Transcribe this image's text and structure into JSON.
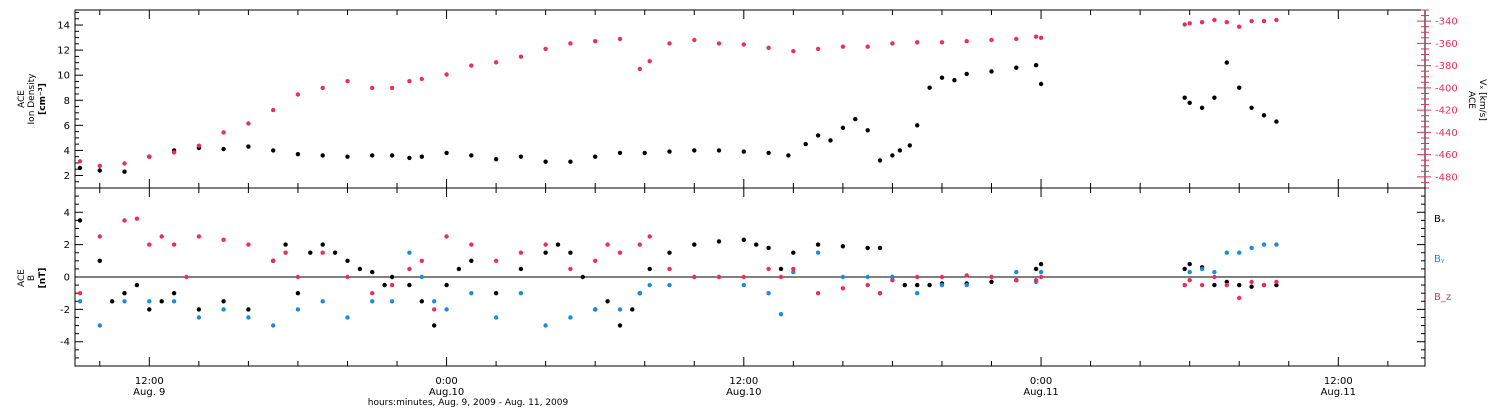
{
  "colors": {
    "black": "#000000",
    "red": "#e8305a",
    "blue": "#1a8be0",
    "frame": "#000000"
  },
  "xaxis": {
    "ticks": [
      {
        "time": "12:00",
        "date": "Aug. 9"
      },
      {
        "time": "0:00",
        "date": "Aug.10"
      },
      {
        "time": "12:00",
        "date": "Aug.10"
      },
      {
        "time": "0:00",
        "date": "Aug.11"
      },
      {
        "time": "12:00",
        "date": "Aug.11"
      }
    ],
    "label": "hours:minutes, Aug.  9, 2009 - Aug. 11, 2009"
  },
  "top_panel": {
    "left_label": {
      "line1": "ACE",
      "line2": "Ion Density",
      "units": "[cm⁻³]"
    },
    "right_label": {
      "line1": "ACE",
      "line2": "Vₓ [km/s]"
    },
    "left_ticks": [
      "2",
      "4",
      "6",
      "8",
      "10",
      "12",
      "14"
    ],
    "right_ticks": [
      "-480",
      "-460",
      "-440",
      "-420",
      "-400",
      "-380",
      "-360",
      "-340"
    ]
  },
  "bottom_panel": {
    "left_label": {
      "line1": "ACE",
      "line2": "B",
      "units": "[nT]"
    },
    "left_ticks": [
      "-4",
      "-2",
      "0",
      "2",
      "4"
    ],
    "legend": [
      {
        "name": "Bₓ",
        "color": "#000000"
      },
      {
        "name": "Bᵧ",
        "color": "#1a8be0"
      },
      {
        "name": "B_z",
        "color": "#e8305a"
      }
    ]
  },
  "chart_data": [
    {
      "type": "scatter",
      "panel": "top",
      "x_unit": "hours since Aug. 9, 2009 00:00 UT",
      "xlim": [
        9.0,
        63.5
      ],
      "ylim": [
        1.0,
        15.2
      ],
      "y2lim": [
        -490,
        -330
      ],
      "series": [
        {
          "name": "Ion Density",
          "axis": "left",
          "color": "#000000",
          "x": [
            9.2,
            10.0,
            11.0,
            12.0,
            13.0,
            14.0,
            15.0,
            16.0,
            17.0,
            18.0,
            19.0,
            20.0,
            21.0,
            21.8,
            22.5,
            23.0,
            24.0,
            25.0,
            26.0,
            27.0,
            28.0,
            29.0,
            30.0,
            31.0,
            32.0,
            33.0,
            34.0,
            35.0,
            36.0,
            37.0,
            37.8,
            38.5,
            39.0,
            39.5,
            40.0,
            40.5,
            41.0,
            41.5,
            42.0,
            42.3,
            42.7,
            43.0,
            43.5,
            44.0,
            44.5,
            45.0,
            46.0,
            47.0,
            47.8,
            48.0,
            53.8,
            54.0,
            54.5,
            55.0,
            55.5,
            56.0,
            56.5,
            57.0,
            57.5
          ],
          "y": [
            2.6,
            2.4,
            2.3,
            3.5,
            4.0,
            4.2,
            4.1,
            4.3,
            4.0,
            3.7,
            3.6,
            3.5,
            3.6,
            3.6,
            3.4,
            3.5,
            3.8,
            3.6,
            3.3,
            3.5,
            3.1,
            3.1,
            3.5,
            3.8,
            3.8,
            3.9,
            4.0,
            4.0,
            3.9,
            3.8,
            3.6,
            4.5,
            5.2,
            4.8,
            5.8,
            6.5,
            5.6,
            3.2,
            3.6,
            4.0,
            4.4,
            6.0,
            9.0,
            9.8,
            9.6,
            10.1,
            10.3,
            10.6,
            10.8,
            9.3,
            8.2,
            7.8,
            7.4,
            8.2,
            11.0,
            9.0,
            7.4,
            6.8,
            6.3
          ]
        },
        {
          "name": "Vx",
          "axis": "right",
          "color": "#e8305a",
          "x": [
            9.2,
            10.0,
            11.0,
            12.0,
            13.0,
            14.0,
            15.0,
            16.0,
            17.0,
            18.0,
            19.0,
            20.0,
            21.0,
            21.8,
            22.5,
            23.0,
            24.0,
            25.0,
            26.0,
            27.0,
            28.0,
            29.0,
            30.0,
            31.0,
            31.8,
            32.2,
            33.0,
            34.0,
            35.0,
            36.0,
            37.0,
            38.0,
            39.0,
            40.0,
            41.0,
            42.0,
            43.0,
            44.0,
            45.0,
            46.0,
            47.0,
            47.8,
            48.0,
            53.8,
            54.0,
            54.5,
            55.0,
            55.5,
            56.0,
            56.5,
            57.0,
            57.5
          ],
          "y": [
            -466,
            -470,
            -468,
            -462,
            -458,
            -452,
            -440,
            -432,
            -420,
            -406,
            -400,
            -394,
            -400,
            -400,
            -394,
            -392,
            -388,
            -380,
            -377,
            -372,
            -365,
            -360,
            -358,
            -356,
            -383,
            -376,
            -360,
            -357,
            -360,
            -361,
            -364,
            -367,
            -365,
            -363,
            -363,
            -360,
            -359,
            -359,
            -358,
            -357,
            -356,
            -354,
            -355,
            -343,
            -342,
            -341,
            -339,
            -341,
            -345,
            -340,
            -340,
            -339
          ]
        }
      ]
    },
    {
      "type": "scatter",
      "panel": "bottom",
      "x_unit": "hours since Aug. 9, 2009 00:00 UT",
      "xlim": [
        9.0,
        63.5
      ],
      "ylim": [
        -5.5,
        5.5
      ],
      "zero_line": true,
      "series": [
        {
          "name": "Bx",
          "color": "#000000",
          "x": [
            9.2,
            10.0,
            10.5,
            11.0,
            11.5,
            12.0,
            12.5,
            13.0,
            14.0,
            15.0,
            16.0,
            17.0,
            17.5,
            18.0,
            18.5,
            19.0,
            19.5,
            20.0,
            20.5,
            21.0,
            21.5,
            21.8,
            22.5,
            23.0,
            23.5,
            24.0,
            24.5,
            25.0,
            26.0,
            27.0,
            28.0,
            28.5,
            29.0,
            29.5,
            30.0,
            30.5,
            31.0,
            31.5,
            31.8,
            32.2,
            33.0,
            34.0,
            35.0,
            36.0,
            36.5,
            37.0,
            37.5,
            38.0,
            39.0,
            40.0,
            41.0,
            41.5,
            42.0,
            42.5,
            43.0,
            43.5,
            44.0,
            45.0,
            46.0,
            47.0,
            47.8,
            48.0,
            53.8,
            54.0,
            54.5,
            55.0,
            55.5,
            56.0,
            56.5,
            57.0,
            57.5
          ],
          "y": [
            3.5,
            1.0,
            -1.5,
            -1.0,
            -0.5,
            -2.0,
            -1.5,
            -1.0,
            -2.0,
            -1.5,
            -2.0,
            1.0,
            2.0,
            -1.0,
            1.5,
            2.0,
            1.5,
            1.0,
            0.5,
            0.3,
            -0.5,
            0.0,
            -0.5,
            -1.5,
            -3.0,
            -0.5,
            0.5,
            1.0,
            -1.0,
            0.5,
            1.5,
            2.0,
            1.5,
            0.0,
            -2.0,
            -1.5,
            -3.0,
            -2.0,
            -1.0,
            0.5,
            1.5,
            2.0,
            2.2,
            2.3,
            2.0,
            1.8,
            0.5,
            1.5,
            2.0,
            1.9,
            1.8,
            1.8,
            0.0,
            -0.5,
            -0.5,
            -0.5,
            -0.4,
            -0.4,
            -0.3,
            -0.2,
            0.5,
            0.8,
            0.5,
            0.8,
            0.6,
            -0.5,
            -0.3,
            -0.5,
            -0.6,
            -0.5,
            -0.5
          ]
        },
        {
          "name": "By",
          "color": "#1a8be0",
          "x": [
            9.2,
            10.0,
            11.0,
            12.0,
            13.0,
            14.0,
            15.0,
            16.0,
            17.0,
            18.0,
            19.0,
            20.0,
            21.0,
            21.8,
            22.5,
            23.0,
            23.5,
            24.0,
            25.0,
            26.0,
            27.0,
            28.0,
            29.0,
            30.0,
            31.0,
            31.8,
            32.2,
            33.0,
            34.0,
            35.0,
            36.0,
            37.0,
            37.5,
            38.0,
            39.0,
            40.0,
            41.0,
            41.5,
            42.0,
            43.0,
            44.0,
            45.0,
            46.0,
            47.0,
            47.8,
            48.0,
            53.8,
            54.0,
            54.5,
            55.0,
            55.5,
            56.0,
            56.5,
            57.0,
            57.5
          ],
          "y": [
            -1.5,
            -3.0,
            -1.5,
            -1.5,
            -1.5,
            -2.5,
            -2.0,
            -2.5,
            -3.0,
            -2.0,
            -1.5,
            -2.5,
            -1.5,
            -1.5,
            1.5,
            0.0,
            -1.5,
            -2.0,
            -1.0,
            -2.5,
            -1.0,
            -3.0,
            -2.5,
            -2.0,
            -2.0,
            -1.0,
            -0.5,
            -0.5,
            0.0,
            0.0,
            -0.5,
            -1.0,
            -2.3,
            0.3,
            1.5,
            0.0,
            0.0,
            -1.0,
            0.0,
            -1.0,
            -0.5,
            -0.5,
            0.0,
            0.3,
            -0.3,
            0.3,
            -0.5,
            0.3,
            0.5,
            0.3,
            1.5,
            1.5,
            1.8,
            2.0,
            2.0
          ]
        },
        {
          "name": "Bz",
          "color": "#e8305a",
          "x": [
            9.2,
            10.0,
            11.0,
            11.5,
            12.0,
            12.5,
            13.0,
            13.5,
            14.0,
            15.0,
            16.0,
            17.0,
            17.5,
            18.0,
            19.0,
            20.0,
            21.0,
            21.8,
            22.5,
            23.0,
            23.5,
            24.0,
            25.0,
            26.0,
            27.0,
            28.0,
            29.0,
            30.0,
            30.5,
            31.0,
            31.8,
            32.2,
            33.0,
            34.0,
            35.0,
            36.0,
            37.0,
            37.5,
            38.0,
            39.0,
            40.0,
            41.0,
            41.5,
            42.0,
            43.0,
            44.0,
            45.0,
            46.0,
            47.0,
            47.8,
            48.0,
            53.8,
            54.0,
            54.5,
            55.0,
            55.5,
            56.0,
            56.5,
            57.0,
            57.5
          ],
          "y": [
            -1.0,
            2.5,
            3.5,
            3.6,
            2.0,
            2.5,
            2.0,
            0.0,
            2.5,
            2.3,
            2.0,
            1.0,
            1.5,
            0.0,
            1.5,
            0.0,
            -1.0,
            -0.5,
            0.5,
            1.0,
            -2.0,
            2.5,
            2.0,
            1.0,
            1.5,
            2.0,
            0.5,
            1.0,
            2.0,
            1.5,
            2.0,
            2.5,
            0.5,
            0.0,
            0.0,
            0.0,
            0.5,
            0.0,
            0.5,
            -1.0,
            -0.7,
            -0.5,
            -1.0,
            -0.2,
            0.0,
            0.0,
            0.1,
            0.0,
            -0.2,
            -0.2,
            0.0,
            -0.5,
            -0.2,
            -0.5,
            0.0,
            -0.5,
            -1.3,
            -0.3,
            -0.5,
            -0.3
          ]
        }
      ]
    }
  ]
}
